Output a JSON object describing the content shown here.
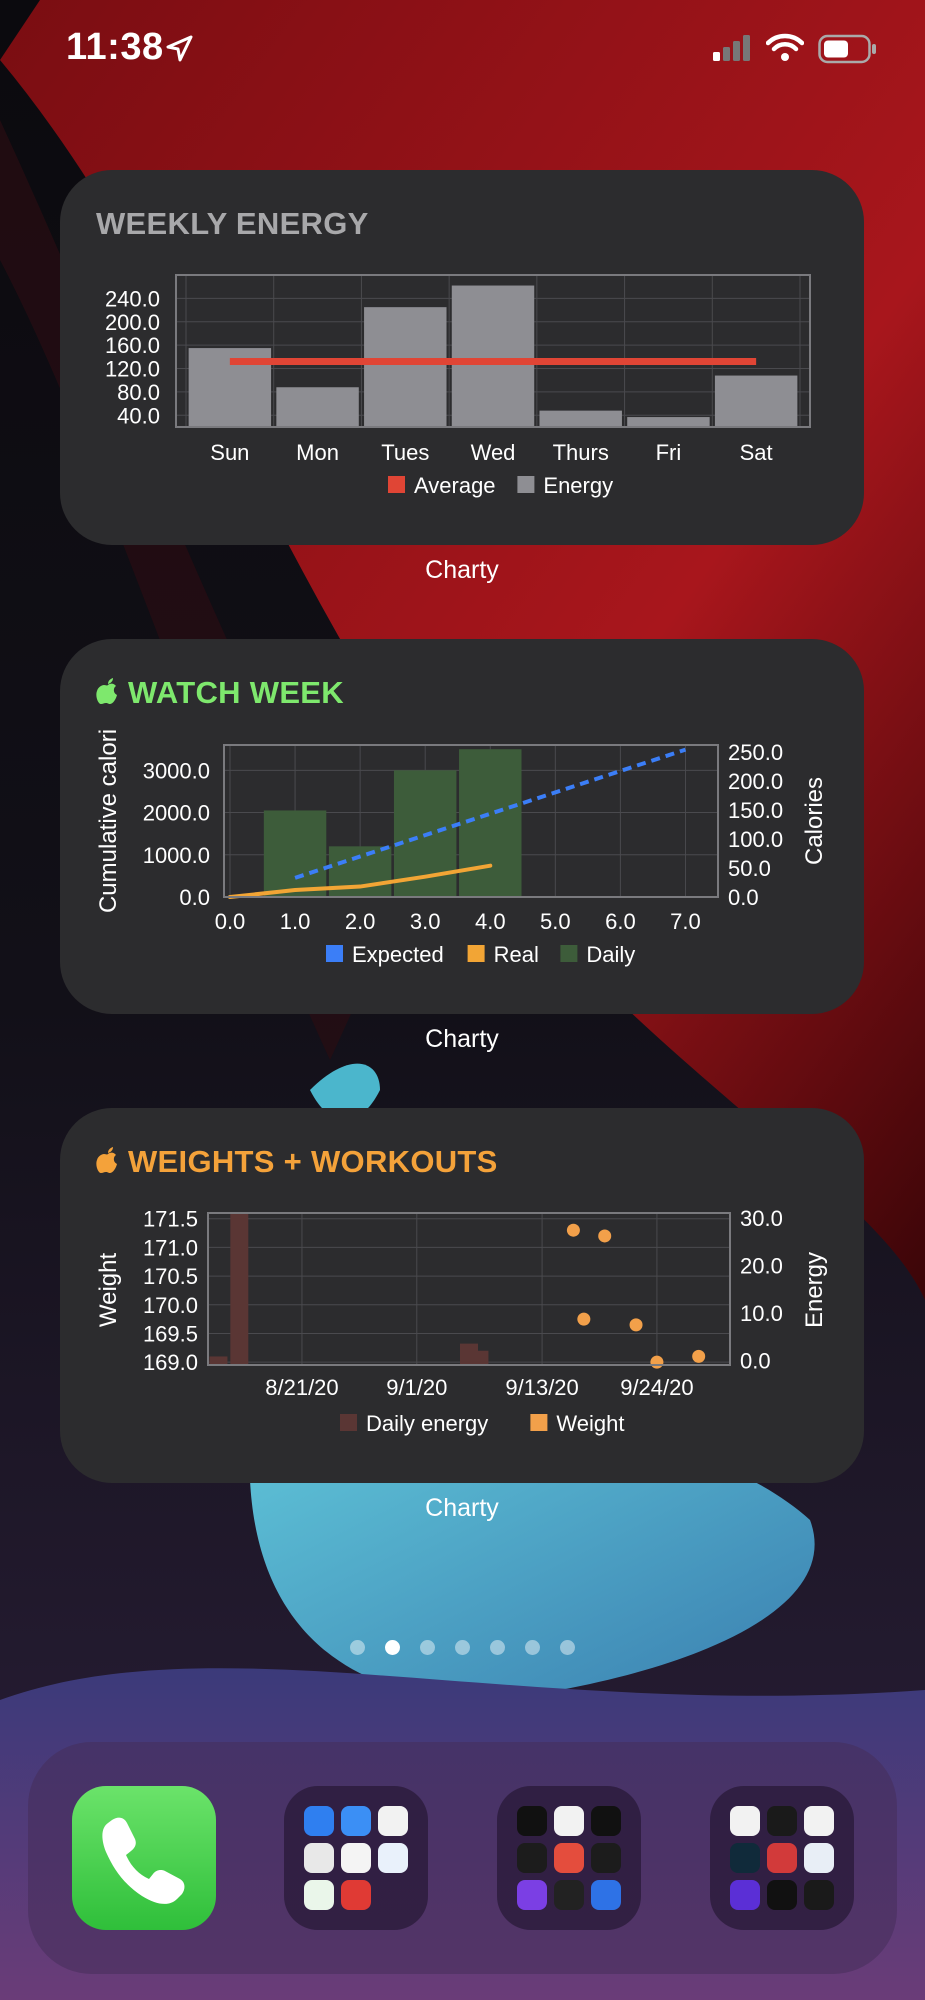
{
  "status_bar": {
    "time": "11:38"
  },
  "widgets": [
    {
      "title": "WEEKLY ENERGY",
      "app_label": "Charty",
      "chart_data": {
        "type": "bar",
        "categories": [
          "Sun",
          "Mon",
          "Tues",
          "Wed",
          "Thurs",
          "Fri",
          "Sat"
        ],
        "series": [
          {
            "name": "Energy",
            "values": [
              155,
              88,
              225,
              262,
              48,
              37,
              108
            ],
            "color": "#8e8e93"
          },
          {
            "name": "Average",
            "values": [
              132,
              132,
              132,
              132,
              132,
              132,
              132
            ],
            "color": "#e04535",
            "style": "line"
          }
        ],
        "yticks": [
          "40.0",
          "80.0",
          "120.0",
          "160.0",
          "200.0",
          "240.0"
        ],
        "ylim": [
          20,
          280
        ],
        "legend": [
          "Average",
          "Energy"
        ],
        "legend_position": "bottom",
        "grid": true
      }
    },
    {
      "title": "WATCH WEEK",
      "app_label": "Charty",
      "chart_data": {
        "type": "bar",
        "xticks": [
          "0.0",
          "1.0",
          "2.0",
          "3.0",
          "4.0",
          "5.0",
          "6.0",
          "7.0"
        ],
        "xlim": [
          0,
          7.5
        ],
        "ylabel": "Cumulative calori",
        "y2label": "Calories",
        "yticks": [
          "0.0",
          "1000.0",
          "2000.0",
          "3000.0"
        ],
        "ylim": [
          0,
          3600
        ],
        "y2ticks": [
          "0.0",
          "50.0",
          "100.0",
          "150.0",
          "200.0",
          "250.0"
        ],
        "y2lim": [
          0,
          262
        ],
        "series": [
          {
            "name": "Daily",
            "type": "bar",
            "axis": "left",
            "color": "#3d5c3a",
            "x": [
              1,
              2,
              3,
              4
            ],
            "y": [
              2050,
              1200,
              3000,
              3500
            ]
          },
          {
            "name": "Expected",
            "type": "line",
            "style": "dashed",
            "axis": "right",
            "color": "#3b7ef7",
            "x": [
              1,
              7
            ],
            "y": [
              33,
              254
            ]
          },
          {
            "name": "Real",
            "type": "line",
            "axis": "right",
            "color": "#f2a535",
            "x": [
              0,
              1,
              2,
              3,
              4
            ],
            "y": [
              0,
              12,
              18,
              35,
              54
            ]
          }
        ],
        "legend": [
          "Expected",
          "Real",
          "Daily"
        ],
        "legend_position": "bottom",
        "grid": true
      }
    },
    {
      "title": "WEIGHTS + WORKOUTS",
      "app_label": "Charty",
      "chart_data": {
        "type": "scatter",
        "ylabel": "Weight",
        "y2label": "Energy",
        "xticks": [
          "8/21/20",
          "9/1/20",
          "9/13/20",
          "9/24/20"
        ],
        "xlim": [
          "2020-08-12",
          "2020-10-01"
        ],
        "yticks": [
          "169.0",
          "169.5",
          "170.0",
          "170.5",
          "171.0",
          "171.5"
        ],
        "ylim": [
          168.95,
          171.6
        ],
        "y2ticks": [
          "0.0",
          "10.0",
          "20.0",
          "30.0"
        ],
        "y2lim": [
          -1,
          31
        ],
        "series": [
          {
            "name": "Daily energy",
            "type": "bar",
            "axis": "right",
            "color": "#5a3634",
            "x": [
              "2020-08-13",
              "2020-08-15",
              "2020-09-06",
              "2020-09-07"
            ],
            "y": [
              0.8,
              31,
              3.5,
              2
            ]
          },
          {
            "name": "Weight",
            "type": "scatter",
            "axis": "left",
            "color": "#f2a04a",
            "x": [
              "2020-09-16",
              "2020-09-19",
              "2020-09-17",
              "2020-09-22",
              "2020-09-24",
              "2020-09-28"
            ],
            "y": [
              171.3,
              171.2,
              169.75,
              169.65,
              169.0,
              169.1
            ]
          }
        ],
        "legend": [
          "Daily energy",
          "Weight"
        ],
        "legend_position": "bottom",
        "grid": true
      }
    }
  ],
  "page_dots": {
    "count": 7,
    "active": 1
  },
  "dock": {
    "apps": [
      "phone-app",
      "folder-productivity",
      "folder-health",
      "folder-fitness"
    ]
  }
}
